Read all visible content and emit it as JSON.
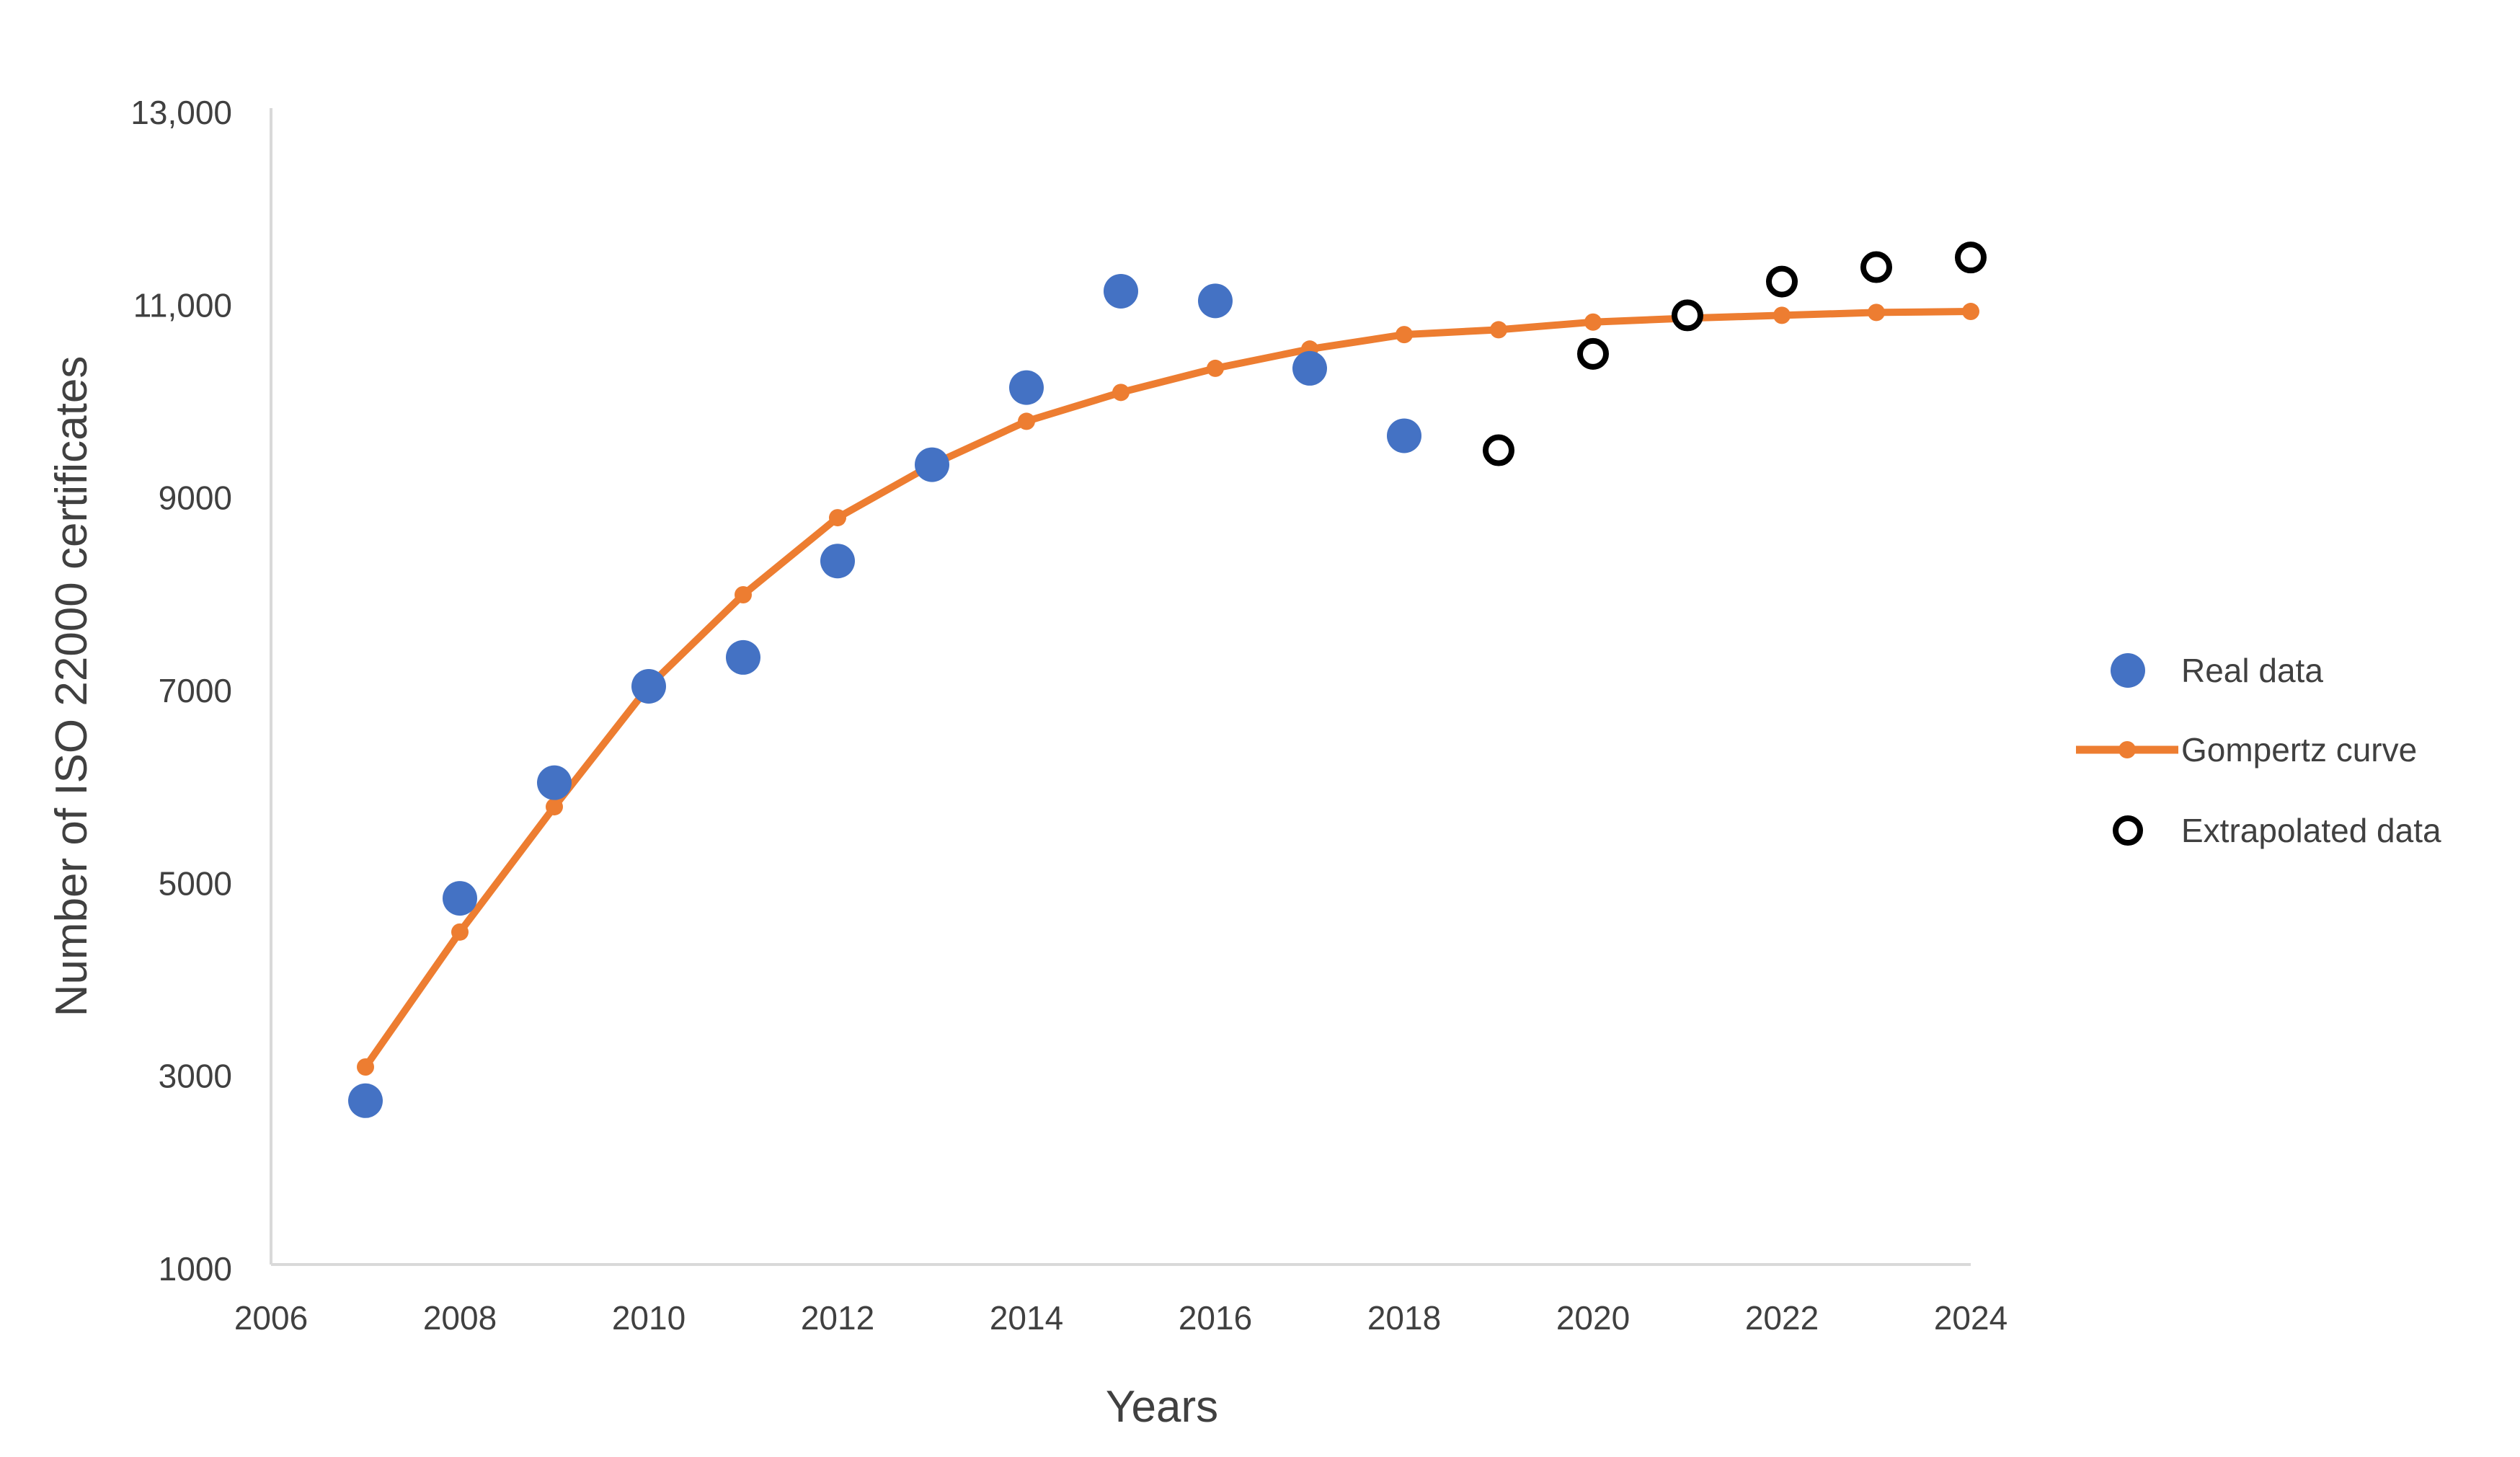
{
  "chart_data": {
    "type": "scatter",
    "title": "",
    "xlabel": "Years",
    "ylabel": "Number of ISO 22000 certificates",
    "xlim": [
      2006,
      2024
    ],
    "ylim": [
      1000,
      13000
    ],
    "x_ticks": [
      2006,
      2008,
      2010,
      2012,
      2014,
      2016,
      2018,
      2020,
      2022,
      2024
    ],
    "x_tick_labels": [
      "2006",
      "2008",
      "2010",
      "2012",
      "2014",
      "2016",
      "2018",
      "2020",
      "2022",
      "2024"
    ],
    "y_ticks": [
      1000,
      3000,
      5000,
      7000,
      9000,
      11000,
      13000
    ],
    "y_tick_labels": [
      "1000",
      "3000",
      "5000",
      "7000",
      "9000",
      "11,000",
      "13,000"
    ],
    "grid": false,
    "legend_position": "right",
    "series": [
      {
        "name": "Real data",
        "kind": "scatter-filled",
        "color": "#4472C4",
        "x": [
          2007,
          2008,
          2009,
          2010,
          2011,
          2012,
          2013,
          2014,
          2015,
          2016,
          2017,
          2018
        ],
        "y": [
          2700,
          4800,
          6000,
          7000,
          7300,
          8300,
          9300,
          10100,
          11100,
          11000,
          10300,
          9600
        ]
      },
      {
        "name": "Gompertz curve",
        "kind": "line-markers",
        "color": "#ED7D31",
        "x": [
          2007,
          2008,
          2009,
          2010,
          2011,
          2012,
          2013,
          2014,
          2015,
          2016,
          2017,
          2018,
          2019,
          2020,
          2021,
          2022,
          2023,
          2024
        ],
        "y": [
          3050,
          4450,
          5750,
          7000,
          7950,
          8750,
          9300,
          9750,
          10050,
          10300,
          10500,
          10650,
          10700,
          10780,
          10820,
          10850,
          10880,
          10890
        ]
      },
      {
        "name": "Extrapolated data",
        "kind": "scatter-hollow",
        "color": "#000000",
        "x": [
          2019,
          2020,
          2021,
          2022,
          2023,
          2024
        ],
        "y": [
          9450,
          10450,
          10850,
          11200,
          11350,
          11450
        ]
      }
    ]
  }
}
